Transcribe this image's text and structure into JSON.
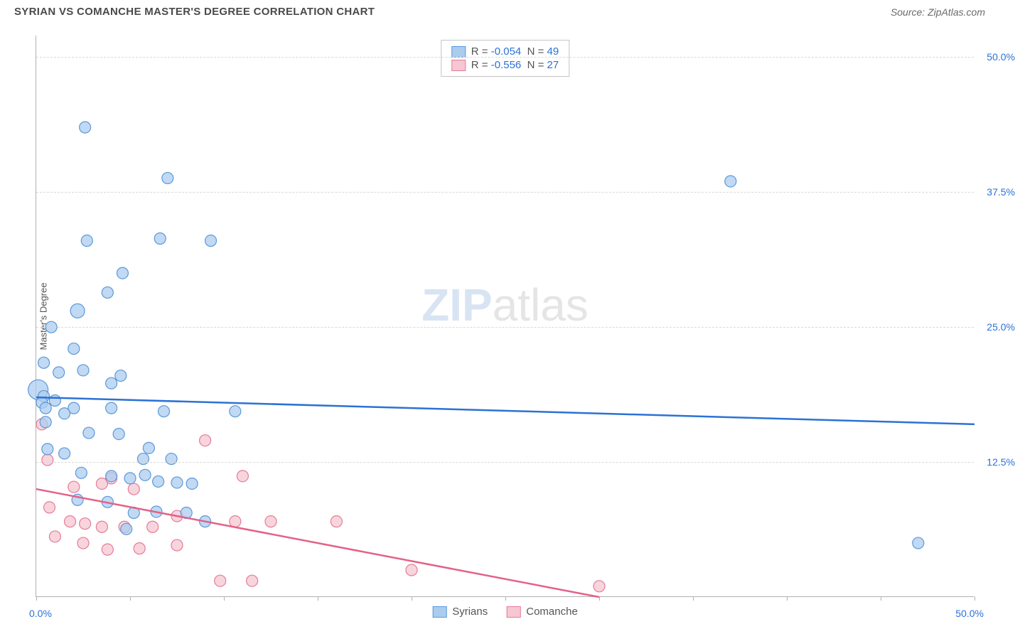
{
  "title": "SYRIAN VS COMANCHE MASTER'S DEGREE CORRELATION CHART",
  "source": "Source: ZipAtlas.com",
  "ylabel": "Master's Degree",
  "watermark_zip": "ZIP",
  "watermark_atlas": "atlas",
  "chart": {
    "type": "scatter",
    "xlim": [
      0,
      50
    ],
    "ylim": [
      0,
      52
    ],
    "xrange_left": "0.0%",
    "xrange_right": "50.0%",
    "yticks": [
      {
        "v": 12.5,
        "label": "12.5%"
      },
      {
        "v": 25.0,
        "label": "25.0%"
      },
      {
        "v": 37.5,
        "label": "37.5%"
      },
      {
        "v": 50.0,
        "label": "50.0%"
      }
    ],
    "xtick_positions": [
      0,
      5,
      10,
      15,
      20,
      25,
      30,
      35,
      40,
      45,
      50
    ],
    "grid_color": "#d8d8d8",
    "background": "#ffffff",
    "series": [
      {
        "name": "Syrians",
        "marker_fill": "#acccee",
        "marker_stroke": "#5a99dd",
        "line_color": "#2b72d6",
        "marker_radius": 8,
        "r": "-0.054",
        "n": "49",
        "trend": {
          "x1": 0,
          "y1": 18.5,
          "x2": 50,
          "y2": 16.0
        },
        "points": [
          [
            2.6,
            43.5
          ],
          [
            7.0,
            38.8
          ],
          [
            37.0,
            38.5
          ],
          [
            2.7,
            33.0
          ],
          [
            6.6,
            33.2
          ],
          [
            9.3,
            33.0
          ],
          [
            4.6,
            30.0
          ],
          [
            3.8,
            28.2
          ],
          [
            2.2,
            26.5,
            10
          ],
          [
            0.8,
            25.0
          ],
          [
            2.0,
            23.0
          ],
          [
            0.4,
            21.7
          ],
          [
            2.5,
            21.0
          ],
          [
            1.2,
            20.8
          ],
          [
            4.5,
            20.5
          ],
          [
            4.0,
            19.8
          ],
          [
            0.1,
            19.2,
            14
          ],
          [
            0.4,
            18.6
          ],
          [
            1.0,
            18.2
          ],
          [
            0.3,
            18.0
          ],
          [
            0.5,
            17.5
          ],
          [
            2.0,
            17.5
          ],
          [
            4.0,
            17.5
          ],
          [
            1.5,
            17.0
          ],
          [
            6.8,
            17.2
          ],
          [
            10.6,
            17.2
          ],
          [
            0.5,
            16.2
          ],
          [
            2.8,
            15.2
          ],
          [
            4.4,
            15.1
          ],
          [
            0.6,
            13.7
          ],
          [
            6.0,
            13.8
          ],
          [
            5.7,
            12.8
          ],
          [
            7.2,
            12.8
          ],
          [
            2.4,
            11.5
          ],
          [
            4.0,
            11.2
          ],
          [
            5.0,
            11.0
          ],
          [
            5.8,
            11.3
          ],
          [
            6.5,
            10.7
          ],
          [
            7.5,
            10.6
          ],
          [
            8.3,
            10.5
          ],
          [
            2.2,
            9.0
          ],
          [
            3.8,
            8.8
          ],
          [
            5.2,
            7.8
          ],
          [
            6.4,
            7.9
          ],
          [
            8.0,
            7.8
          ],
          [
            4.8,
            6.3
          ],
          [
            9.0,
            7.0
          ],
          [
            1.5,
            13.3
          ],
          [
            47.0,
            5.0
          ]
        ]
      },
      {
        "name": "Comanche",
        "marker_fill": "#f6c7d2",
        "marker_stroke": "#e67a98",
        "line_color": "#e46187",
        "marker_radius": 8,
        "r": "-0.556",
        "n": "27",
        "trend": {
          "x1": 0,
          "y1": 10.0,
          "x2": 30,
          "y2": 0.0
        },
        "points": [
          [
            0.3,
            16.0
          ],
          [
            0.6,
            12.7
          ],
          [
            9.0,
            14.5
          ],
          [
            2.0,
            10.2
          ],
          [
            3.5,
            10.5
          ],
          [
            4.0,
            11.0
          ],
          [
            5.2,
            10.0
          ],
          [
            11.0,
            11.2
          ],
          [
            0.7,
            8.3
          ],
          [
            1.8,
            7.0
          ],
          [
            2.6,
            6.8
          ],
          [
            3.5,
            6.5
          ],
          [
            4.7,
            6.5
          ],
          [
            6.2,
            6.5
          ],
          [
            7.5,
            7.5
          ],
          [
            10.6,
            7.0
          ],
          [
            12.5,
            7.0
          ],
          [
            16.0,
            7.0
          ],
          [
            1.0,
            5.6
          ],
          [
            2.5,
            5.0
          ],
          [
            3.8,
            4.4
          ],
          [
            5.5,
            4.5
          ],
          [
            7.5,
            4.8
          ],
          [
            9.8,
            1.5
          ],
          [
            11.5,
            1.5
          ],
          [
            20.0,
            2.5
          ],
          [
            30.0,
            1.0
          ]
        ]
      }
    ]
  },
  "footer_legend": [
    {
      "label": "Syrians",
      "fill": "#acccee",
      "stroke": "#5a99dd"
    },
    {
      "label": "Comanche",
      "fill": "#f6c7d2",
      "stroke": "#e67a98"
    }
  ]
}
